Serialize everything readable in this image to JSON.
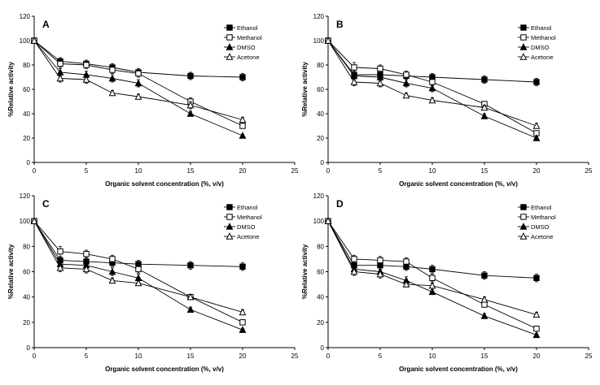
{
  "chart_data": [
    {
      "panel_label": "A",
      "type": "line",
      "xlabel": "Organic solvent concentration (%, v/v)",
      "ylabel": "%Relative activity",
      "xlim": [
        0,
        25
      ],
      "ylim": [
        0,
        120
      ],
      "xticks": [
        0,
        5,
        10,
        15,
        20,
        25
      ],
      "yticks": [
        0,
        20,
        40,
        60,
        80,
        100,
        120
      ],
      "grid": false,
      "legend_position": "top-right",
      "x": [
        0,
        2.5,
        5,
        7.5,
        10,
        15,
        20
      ],
      "series": [
        {
          "name": "Ethanol",
          "marker": "filled-square",
          "values": [
            100,
            83,
            81,
            78,
            74,
            71,
            70
          ],
          "errors": [
            0,
            3,
            3,
            3,
            3,
            3,
            3
          ]
        },
        {
          "name": "Methanol",
          "marker": "open-square",
          "values": [
            100,
            81,
            80,
            76,
            73,
            50,
            30
          ],
          "errors": [
            0,
            3,
            3,
            3,
            3,
            3,
            2
          ]
        },
        {
          "name": "DMSO",
          "marker": "filled-triangle",
          "values": [
            100,
            74,
            72,
            69,
            65,
            40,
            22
          ],
          "errors": [
            0,
            3,
            3,
            3,
            3,
            2,
            1
          ]
        },
        {
          "name": "Acetone",
          "marker": "open-triangle",
          "values": [
            100,
            69,
            68,
            57,
            54,
            47,
            35
          ],
          "errors": [
            0,
            3,
            3,
            2,
            2,
            3,
            2
          ]
        }
      ]
    },
    {
      "panel_label": "B",
      "type": "line",
      "xlabel": "Organic solvent concentration (%, v/v)",
      "ylabel": "%Relative activity",
      "xlim": [
        0,
        25
      ],
      "ylim": [
        0,
        120
      ],
      "xticks": [
        0,
        5,
        10,
        15,
        20,
        25
      ],
      "yticks": [
        0,
        20,
        40,
        60,
        80,
        100,
        120
      ],
      "grid": false,
      "legend_position": "top-right",
      "x": [
        0,
        2.5,
        5,
        7.5,
        10,
        15,
        20
      ],
      "series": [
        {
          "name": "Ethanol",
          "marker": "filled-square",
          "values": [
            100,
            72,
            72,
            71,
            70,
            68,
            66
          ],
          "errors": [
            0,
            3,
            3,
            3,
            3,
            3,
            3
          ]
        },
        {
          "name": "Methanol",
          "marker": "open-square",
          "values": [
            100,
            78,
            77,
            72,
            66,
            48,
            24
          ],
          "errors": [
            0,
            4,
            3,
            3,
            3,
            2,
            2
          ]
        },
        {
          "name": "DMSO",
          "marker": "filled-triangle",
          "values": [
            100,
            71,
            70,
            65,
            61,
            38,
            20
          ],
          "errors": [
            0,
            3,
            3,
            3,
            3,
            2,
            1
          ]
        },
        {
          "name": "Acetone",
          "marker": "open-triangle",
          "values": [
            100,
            66,
            65,
            55,
            51,
            45,
            30
          ],
          "errors": [
            0,
            3,
            3,
            2,
            2,
            2,
            2
          ]
        }
      ]
    },
    {
      "panel_label": "C",
      "type": "line",
      "xlabel": "Organic solvent concentration (%, v/v)",
      "ylabel": "%Relative activity",
      "xlim": [
        0,
        25
      ],
      "ylim": [
        0,
        120
      ],
      "xticks": [
        0,
        5,
        10,
        15,
        20,
        25
      ],
      "yticks": [
        0,
        20,
        40,
        60,
        80,
        100,
        120
      ],
      "grid": false,
      "legend_position": "top-right",
      "x": [
        0,
        2.5,
        5,
        7.5,
        10,
        15,
        20
      ],
      "series": [
        {
          "name": "Ethanol",
          "marker": "filled-square",
          "values": [
            100,
            69,
            68,
            67,
            66,
            65,
            64
          ],
          "errors": [
            0,
            3,
            3,
            3,
            3,
            3,
            3
          ]
        },
        {
          "name": "Methanol",
          "marker": "open-square",
          "values": [
            100,
            76,
            74,
            70,
            62,
            40,
            20
          ],
          "errors": [
            0,
            4,
            3,
            3,
            3,
            2,
            2
          ]
        },
        {
          "name": "DMSO",
          "marker": "filled-triangle",
          "values": [
            100,
            66,
            65,
            60,
            55,
            30,
            14
          ],
          "errors": [
            0,
            3,
            3,
            3,
            3,
            2,
            1
          ]
        },
        {
          "name": "Acetone",
          "marker": "open-triangle",
          "values": [
            100,
            63,
            62,
            53,
            51,
            40,
            28
          ],
          "errors": [
            0,
            3,
            3,
            2,
            2,
            2,
            2
          ]
        }
      ]
    },
    {
      "panel_label": "D",
      "type": "line",
      "xlabel": "Organic solvent concentration (%, v/v)",
      "ylabel": "%Relative activity",
      "xlim": [
        0,
        25
      ],
      "ylim": [
        0,
        120
      ],
      "xticks": [
        0,
        5,
        10,
        15,
        20,
        25
      ],
      "yticks": [
        0,
        20,
        40,
        60,
        80,
        100,
        120
      ],
      "grid": false,
      "legend_position": "top-right",
      "x": [
        0,
        2.5,
        5,
        7.5,
        10,
        15,
        20
      ],
      "series": [
        {
          "name": "Ethanol",
          "marker": "filled-square",
          "values": [
            100,
            65,
            65,
            64,
            62,
            57,
            55
          ],
          "errors": [
            0,
            3,
            3,
            3,
            3,
            3,
            3
          ]
        },
        {
          "name": "Methanol",
          "marker": "open-square",
          "values": [
            100,
            70,
            69,
            68,
            55,
            34,
            15
          ],
          "errors": [
            0,
            3,
            3,
            3,
            3,
            2,
            2
          ]
        },
        {
          "name": "DMSO",
          "marker": "filled-triangle",
          "values": [
            100,
            62,
            60,
            53,
            44,
            25,
            10
          ],
          "errors": [
            0,
            3,
            3,
            3,
            2,
            2,
            1
          ]
        },
        {
          "name": "Acetone",
          "marker": "open-triangle",
          "values": [
            100,
            60,
            58,
            50,
            49,
            38,
            26
          ],
          "errors": [
            0,
            3,
            3,
            2,
            2,
            2,
            2
          ]
        }
      ]
    }
  ]
}
